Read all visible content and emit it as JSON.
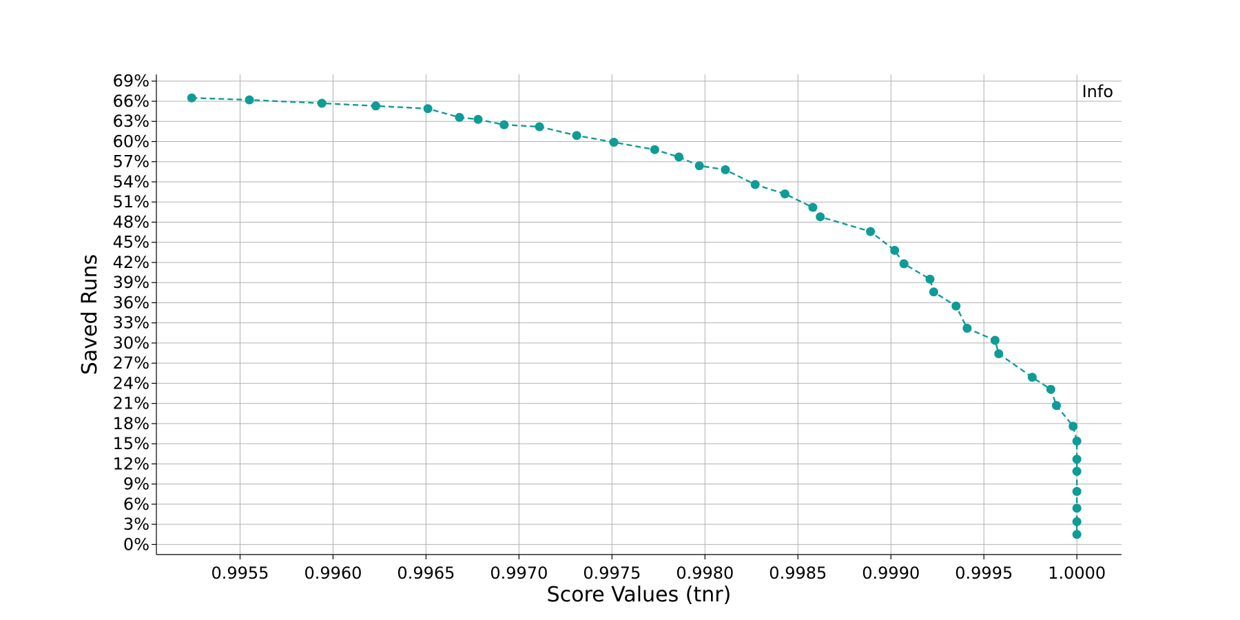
{
  "chart_data": {
    "type": "line",
    "title": "",
    "xlabel": "Score Values (tnr)",
    "ylabel": "Saved Runs",
    "annotation": "Info",
    "xlim": [
      0.99505,
      1.00024
    ],
    "ylim": [
      -1.5,
      70.0
    ],
    "xticks": [
      0.9955,
      0.996,
      0.9965,
      0.997,
      0.9975,
      0.998,
      0.9985,
      0.999,
      0.9995,
      1.0
    ],
    "xtick_labels": [
      "0.9955",
      "0.9960",
      "0.9965",
      "0.9970",
      "0.9975",
      "0.9980",
      "0.9985",
      "0.9990",
      "0.9995",
      "1.0000"
    ],
    "yticks": [
      0,
      3,
      6,
      9,
      12,
      15,
      18,
      21,
      24,
      27,
      30,
      33,
      36,
      39,
      42,
      45,
      48,
      51,
      54,
      57,
      60,
      63,
      66,
      69
    ],
    "ytick_labels": [
      "0%",
      "3%",
      "6%",
      "9%",
      "12%",
      "15%",
      "18%",
      "21%",
      "24%",
      "27%",
      "30%",
      "33%",
      "36%",
      "39%",
      "42%",
      "45%",
      "48%",
      "51%",
      "54%",
      "57%",
      "60%",
      "63%",
      "66%",
      "69%"
    ],
    "grid": true,
    "line_style": "dashed",
    "marker": "circle",
    "color": "#0f9b96",
    "series": [
      {
        "x": [
          0.99524,
          0.99555,
          0.99594,
          0.99623,
          0.99651,
          0.99668,
          0.99678,
          0.99692,
          0.99711,
          0.99731,
          0.99751,
          0.99773,
          0.99786,
          0.99797,
          0.99811,
          0.99827,
          0.99843,
          0.99858,
          0.99862,
          0.99889,
          0.99902,
          0.99907,
          0.99921,
          0.99923,
          0.99935,
          0.99941,
          0.99956,
          0.99958,
          0.99976,
          0.99986,
          0.99989,
          0.99998,
          1.0,
          1.0,
          1.0,
          1.0,
          1.0,
          1.0,
          1.0
        ],
        "y": [
          66.5,
          66.2,
          65.7,
          65.3,
          64.9,
          63.6,
          63.3,
          62.5,
          62.2,
          60.9,
          59.9,
          58.8,
          57.7,
          56.4,
          55.8,
          53.6,
          52.2,
          50.2,
          48.8,
          46.6,
          43.8,
          41.8,
          39.5,
          37.6,
          35.5,
          32.2,
          30.4,
          28.4,
          24.9,
          23.1,
          20.7,
          17.6,
          15.4,
          12.7,
          10.9,
          7.9,
          5.4,
          3.4,
          1.5
        ]
      }
    ]
  }
}
